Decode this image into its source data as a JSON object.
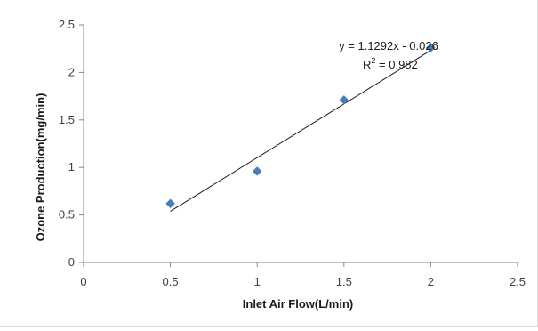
{
  "chart_data": {
    "type": "scatter",
    "title": "",
    "xlabel": "Inlet Air Flow(L/min)",
    "ylabel": "Ozone Production(mg/min)",
    "xlim": [
      0,
      2.5
    ],
    "ylim": [
      0,
      2.5
    ],
    "xticks": [
      "0",
      "0.5",
      "1",
      "1.5",
      "2",
      "2.5"
    ],
    "yticks": [
      "0",
      "0.5",
      "1",
      "1.5",
      "2",
      "2.5"
    ],
    "grid": false,
    "legend": "none",
    "series": [
      {
        "x": [
          0.5,
          1.0,
          1.5,
          2.0
        ],
        "y": [
          0.62,
          0.96,
          1.71,
          2.26
        ],
        "marker": "diamond",
        "color": "#4a7ebb"
      }
    ],
    "trendline": {
      "type": "linear",
      "slope": 1.1292,
      "intercept": -0.026,
      "x_range": [
        0.5,
        2.0
      ],
      "color": "#1a1a1a"
    },
    "annotations": {
      "equation": "y = 1.1292x - 0.026",
      "r2_prefix": "R",
      "r2_sup": "2",
      "r2_suffix": " = 0.982"
    }
  }
}
